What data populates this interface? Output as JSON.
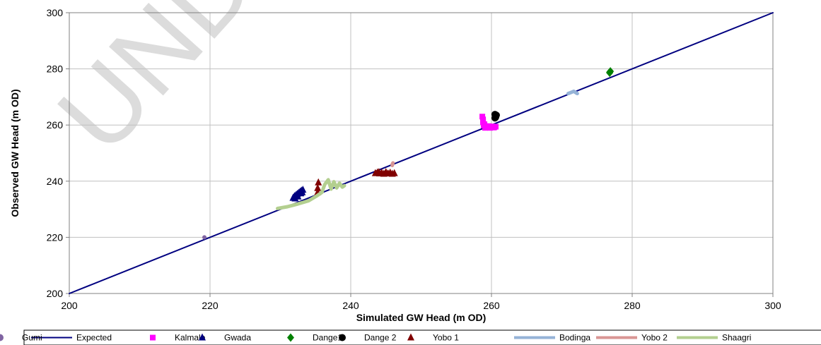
{
  "watermark": "UNDER",
  "chart_data": {
    "type": "scatter",
    "title": "",
    "xlabel": "Simulated GW Head (m OD)",
    "ylabel": "Observed GW Head (m OD)",
    "xlim": [
      200,
      300
    ],
    "ylim": [
      200,
      300
    ],
    "xticks": [
      200,
      220,
      240,
      260,
      280,
      300
    ],
    "yticks": [
      200,
      220,
      240,
      260,
      280,
      300
    ],
    "grid": true,
    "legend_position": "bottom",
    "series": [
      {
        "name": "Expected",
        "kind": "line",
        "color": "#000080",
        "marker": "none",
        "x": [
          200,
          300
        ],
        "y": [
          200,
          300
        ]
      },
      {
        "name": "Kalmalo",
        "kind": "points",
        "color": "#ff00ff",
        "marker": "square",
        "x": [
          258.7,
          258.8,
          258.8,
          259.0,
          259.2,
          259.5,
          259.8,
          260.0,
          260.2,
          260.4,
          260.6,
          258.9,
          259.1,
          259.6,
          260.3,
          258.8
        ],
        "y": [
          263.0,
          262.0,
          261.0,
          260.3,
          259.6,
          259.2,
          259.0,
          259.3,
          259.5,
          259.2,
          259.4,
          259.9,
          259.0,
          259.6,
          259.1,
          261.6
        ]
      },
      {
        "name": "Gwada",
        "kind": "points",
        "color": "#000080",
        "marker": "triangle",
        "x": [
          231.8,
          232.0,
          232.2,
          232.4,
          232.6,
          232.8,
          233.0,
          233.2,
          232.1,
          232.5,
          232.9,
          233.1,
          232.3
        ],
        "y": [
          234.0,
          234.6,
          235.0,
          235.4,
          235.8,
          236.2,
          236.6,
          236.9,
          233.8,
          234.5,
          235.6,
          236.0,
          234.9
        ]
      },
      {
        "name": "Dange1",
        "kind": "points",
        "color": "#008000",
        "marker": "diamond",
        "x": [
          276.8,
          276.9,
          276.8
        ],
        "y": [
          278.8,
          279.1,
          278.6
        ]
      },
      {
        "name": "Dange 2",
        "kind": "points",
        "color": "#000000",
        "marker": "circle",
        "x": [
          260.5,
          260.6,
          260.7,
          260.6,
          260.5
        ],
        "y": [
          262.5,
          263.0,
          263.5,
          262.8,
          263.8
        ]
      },
      {
        "name": "Yobo 1",
        "kind": "points",
        "color": "#800000",
        "marker": "triangle",
        "x": [
          235.3,
          235.3,
          235.4,
          243.5,
          243.8,
          244.1,
          244.4,
          244.7,
          245.0,
          245.3,
          245.6,
          245.9,
          246.2,
          244.0,
          245.0
        ],
        "y": [
          236.0,
          237.5,
          239.5,
          242.8,
          243.1,
          242.7,
          243.0,
          242.6,
          242.9,
          242.7,
          243.0,
          242.6,
          242.8,
          243.2,
          243.2
        ]
      },
      {
        "name": "Bodinga",
        "kind": "trace",
        "color": "#95b3d7",
        "marker": "none",
        "x": [
          270.9,
          271.3,
          271.7,
          272.0,
          272.2
        ],
        "y": [
          271.2,
          271.6,
          272.0,
          271.5,
          271.2
        ]
      },
      {
        "name": "Yobo 2",
        "kind": "trace",
        "color": "#d99694",
        "marker": "none",
        "x": [
          245.9,
          246.0,
          245.9
        ],
        "y": [
          245.6,
          246.5,
          246.0
        ]
      },
      {
        "name": "Shaagri",
        "kind": "trace",
        "color": "#b3cf8f",
        "marker": "none",
        "x": [
          229.6,
          231.0,
          232.5,
          234.0,
          235.2,
          235.9,
          236.3,
          236.8,
          237.2,
          237.6,
          238.0,
          238.4,
          238.8,
          239.1
        ],
        "y": [
          230.3,
          230.9,
          231.9,
          233.0,
          234.8,
          236.0,
          238.8,
          240.5,
          237.2,
          239.8,
          237.6,
          239.3,
          237.9,
          238.4
        ]
      },
      {
        "name": "Gumi",
        "kind": "points",
        "color": "#8064a2",
        "marker": "smallcircle",
        "x": [
          219.2
        ],
        "y": [
          220.0
        ]
      }
    ]
  }
}
